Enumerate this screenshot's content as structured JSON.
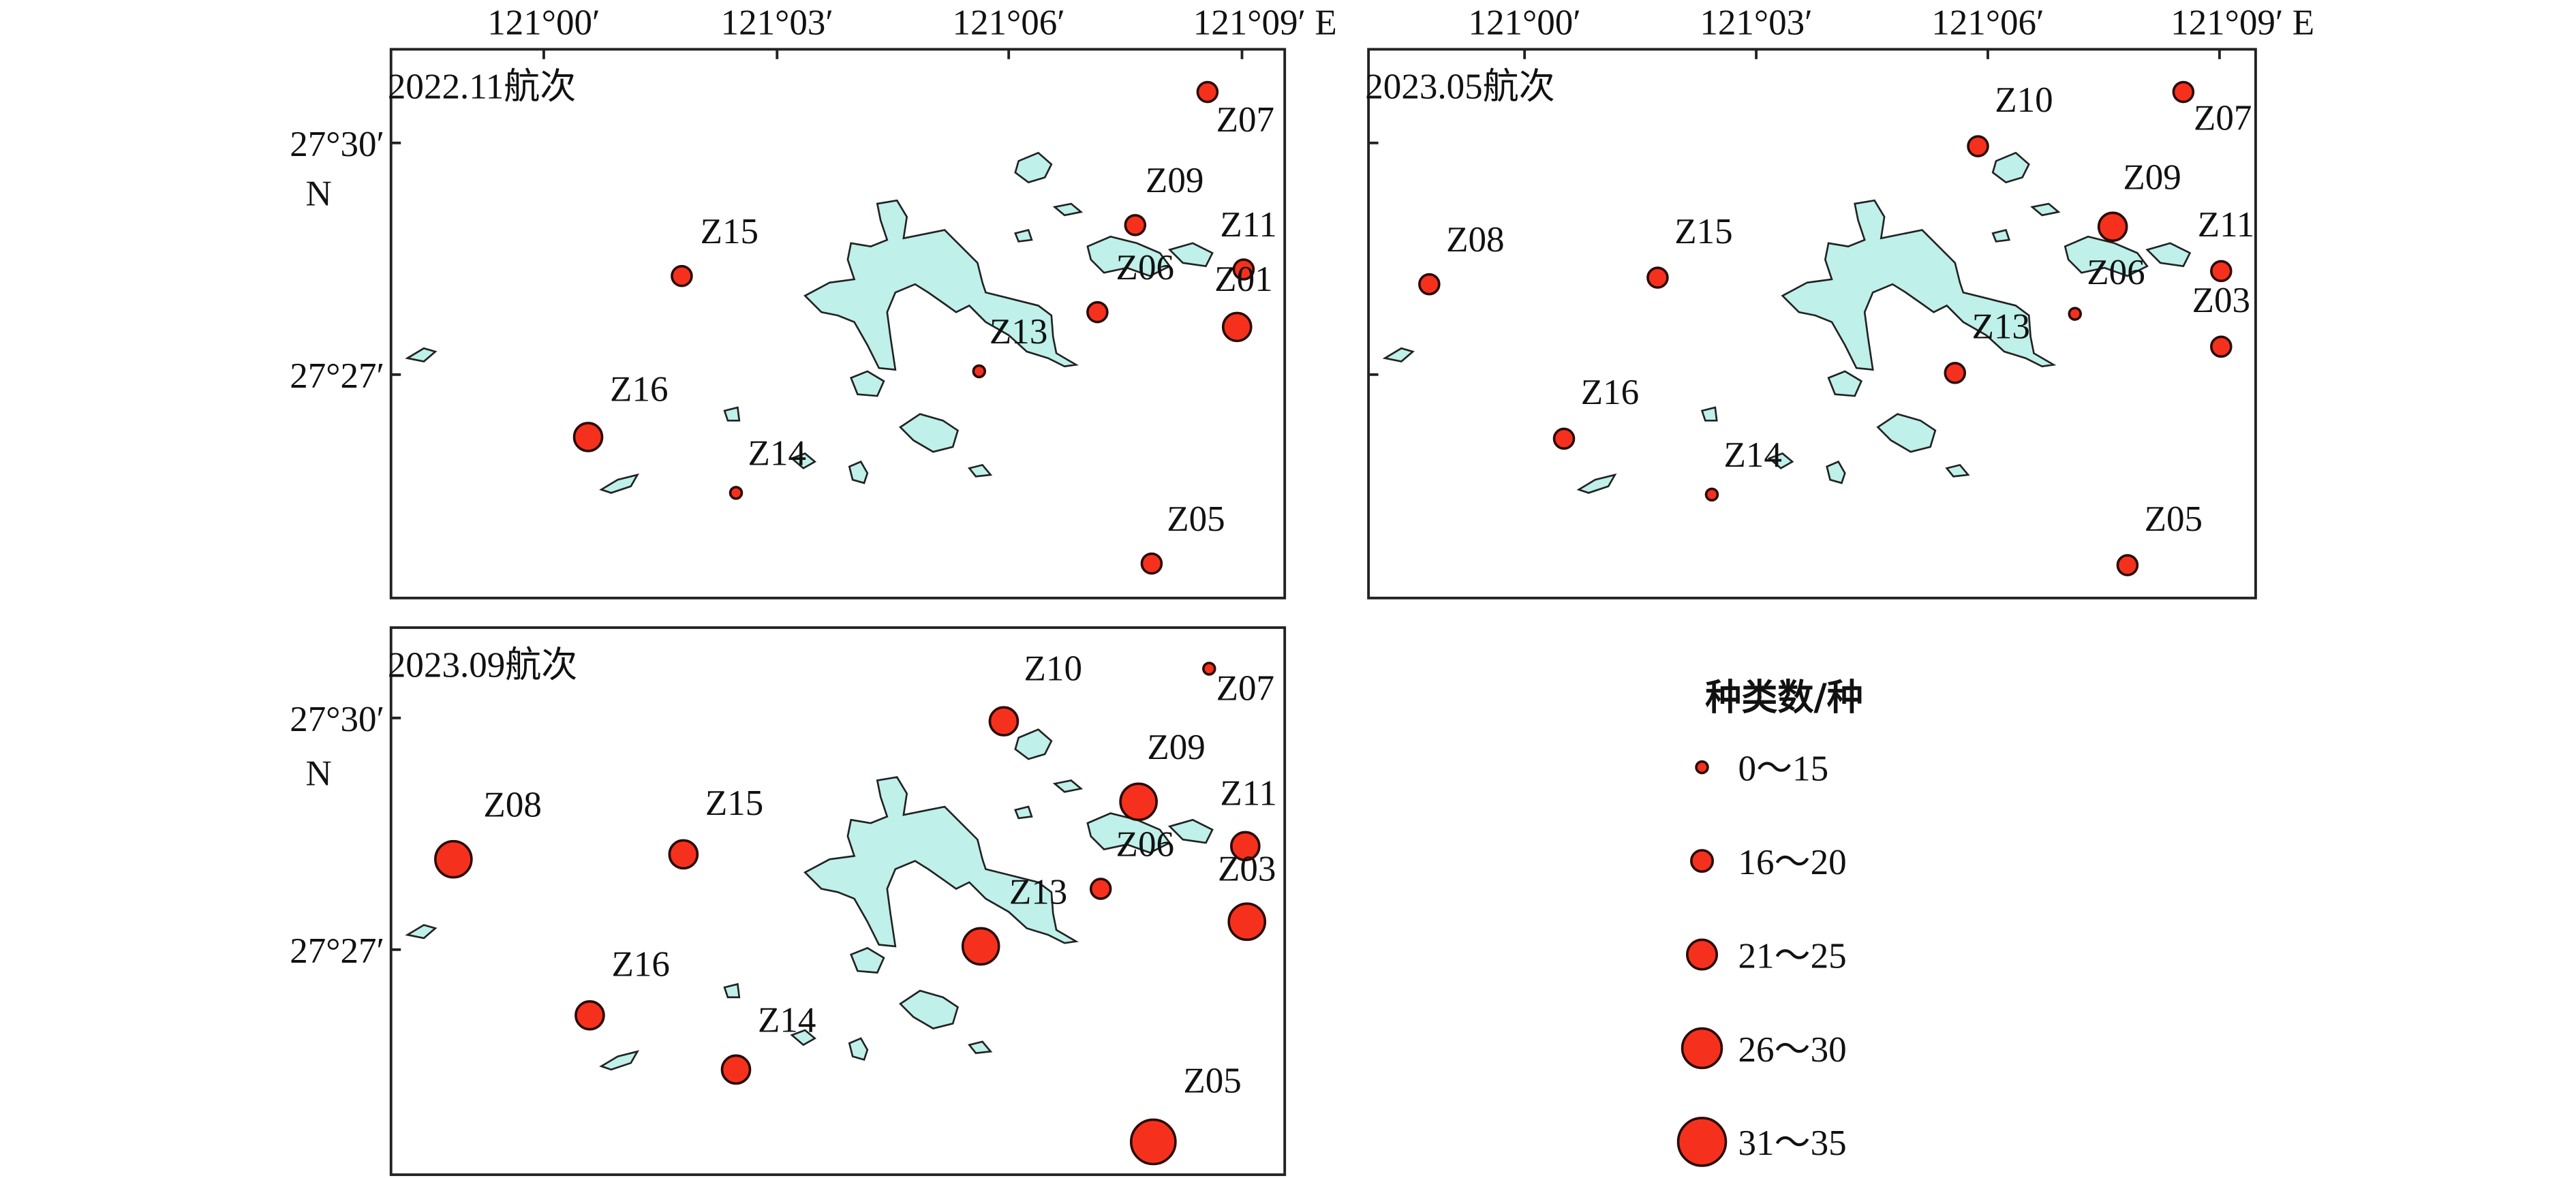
{
  "panels": [
    {
      "title": "2022.11航次",
      "stations": [
        "Z07",
        "Z09",
        "Z15",
        "Z11",
        "Z06",
        "Z01",
        "Z13",
        "Z16",
        "Z14",
        "Z05"
      ]
    },
    {
      "title": "2023.05航次",
      "stations": [
        "Z07",
        "Z10",
        "Z09",
        "Z08",
        "Z15",
        "Z11",
        "Z06",
        "Z03",
        "Z13",
        "Z16",
        "Z14",
        "Z05"
      ]
    },
    {
      "title": "2023.09航次",
      "stations": [
        "Z07",
        "Z10",
        "Z09",
        "Z08",
        "Z15",
        "Z11",
        "Z06",
        "Z03",
        "Z13",
        "Z16",
        "Z14",
        "Z05"
      ]
    }
  ],
  "x_ticks": [
    "121°00′",
    "121°03′",
    "121°06′",
    "121°09′ E"
  ],
  "y_ticks": [
    "27°30′",
    "27°27′"
  ],
  "y_axis_label": "N",
  "legend": {
    "title": "种类数/种",
    "items": [
      "0～15",
      "16～20",
      "21～25",
      "26～30",
      "31～35"
    ]
  }
}
